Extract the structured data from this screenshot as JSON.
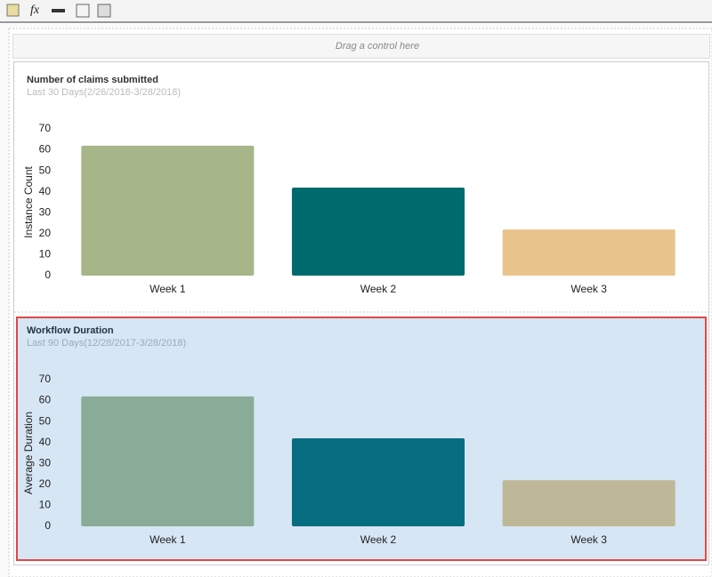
{
  "toolbar": {
    "formula_label": "fx"
  },
  "drop_zone": "Drag a control here",
  "chart_data": [
    {
      "type": "bar",
      "title": "Number of claims submitted",
      "subtitle": "Last 30 Days(2/26/2018-3/28/2018)",
      "y_label": "Instance Count",
      "categories": [
        "Week 1",
        "Week 2",
        "Week 3"
      ],
      "values": [
        62,
        42,
        22
      ],
      "colors": [
        "#a6b688",
        "#006b6e",
        "#e8c48c"
      ],
      "ylim": [
        0,
        70
      ],
      "yticks": [
        0,
        10,
        20,
        30,
        40,
        50,
        60,
        70
      ]
    },
    {
      "type": "bar",
      "title": "Workflow Duration",
      "subtitle": "Last 90 Days(12/28/2017-3/28/2018)",
      "y_label": "Average Duration",
      "categories": [
        "Week 1",
        "Week 2",
        "Week 3"
      ],
      "values": [
        62,
        42,
        22
      ],
      "colors": [
        "#8aab98",
        "#066e80",
        "#bfb898"
      ],
      "ylim": [
        0,
        70
      ],
      "yticks": [
        0,
        10,
        20,
        30,
        40,
        50,
        60,
        70
      ]
    }
  ]
}
